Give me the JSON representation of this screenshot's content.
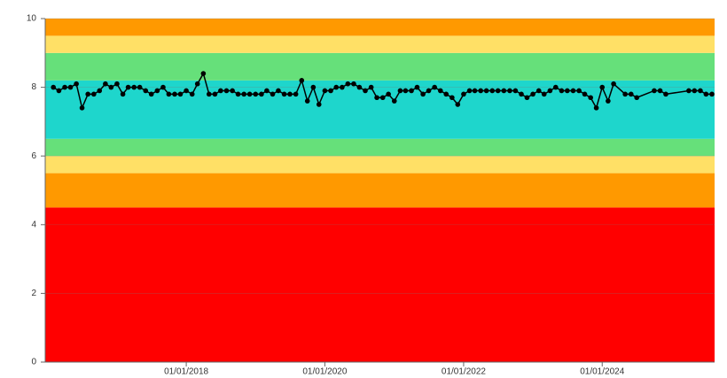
{
  "chart_data": {
    "type": "line",
    "xlim": [
      "2015-12-20",
      "2025-08-15"
    ],
    "ylim": [
      0,
      10
    ],
    "yticks": [
      0,
      2,
      4,
      6,
      8,
      10
    ],
    "xticks": [
      {
        "value": "2018-01-01",
        "label": "01/01/2018"
      },
      {
        "value": "2020-01-01",
        "label": "01/01/2020"
      },
      {
        "value": "2022-01-01",
        "label": "01/01/2022"
      },
      {
        "value": "2024-01-01",
        "label": "01/01/2024"
      }
    ],
    "grid": true,
    "bands": [
      {
        "from": 0,
        "to": 4.5,
        "color": "#ff0000"
      },
      {
        "from": 4.5,
        "to": 5.5,
        "color": "#ff9900"
      },
      {
        "from": 5.5,
        "to": 6,
        "color": "#ffe066"
      },
      {
        "from": 6,
        "to": 6.5,
        "color": "#66e07a"
      },
      {
        "from": 6.5,
        "to": 8.2,
        "color": "#1ed6cc"
      },
      {
        "from": 8.2,
        "to": 9,
        "color": "#66e07a"
      },
      {
        "from": 9,
        "to": 9.5,
        "color": "#ffe066"
      },
      {
        "from": 9.5,
        "to": 10,
        "color": "#ff9900"
      }
    ],
    "series": [
      {
        "color": "#000000",
        "x": [
          "2016-02-01",
          "2016-03-01",
          "2016-04-01",
          "2016-05-01",
          "2016-06-01",
          "2016-07-01",
          "2016-08-01",
          "2016-09-01",
          "2016-10-01",
          "2016-11-01",
          "2016-12-01",
          "2017-01-01",
          "2017-02-01",
          "2017-03-01",
          "2017-04-01",
          "2017-05-01",
          "2017-06-01",
          "2017-07-01",
          "2017-08-01",
          "2017-09-01",
          "2017-10-01",
          "2017-11-01",
          "2017-12-01",
          "2018-01-01",
          "2018-02-01",
          "2018-03-01",
          "2018-04-01",
          "2018-05-01",
          "2018-06-01",
          "2018-07-01",
          "2018-08-01",
          "2018-09-01",
          "2018-10-01",
          "2018-11-01",
          "2018-12-01",
          "2019-01-01",
          "2019-02-01",
          "2019-03-01",
          "2019-04-01",
          "2019-05-01",
          "2019-06-01",
          "2019-07-01",
          "2019-08-01",
          "2019-09-01",
          "2019-10-01",
          "2019-11-01",
          "2019-12-01",
          "2020-01-01",
          "2020-02-01",
          "2020-03-01",
          "2020-04-01",
          "2020-05-01",
          "2020-06-01",
          "2020-07-01",
          "2020-08-01",
          "2020-09-01",
          "2020-10-01",
          "2020-11-01",
          "2020-12-01",
          "2021-01-01",
          "2021-02-01",
          "2021-03-01",
          "2021-04-01",
          "2021-05-01",
          "2021-06-01",
          "2021-07-01",
          "2021-08-01",
          "2021-09-01",
          "2021-10-01",
          "2021-11-01",
          "2021-12-01",
          "2022-01-01",
          "2022-02-01",
          "2022-03-01",
          "2022-04-01",
          "2022-05-01",
          "2022-06-01",
          "2022-07-01",
          "2022-08-01",
          "2022-09-01",
          "2022-10-01",
          "2022-11-01",
          "2022-12-01",
          "2023-01-01",
          "2023-02-01",
          "2023-03-01",
          "2023-04-01",
          "2023-05-01",
          "2023-06-01",
          "2023-07-01",
          "2023-08-01",
          "2023-09-01",
          "2023-10-01",
          "2023-11-01",
          "2023-12-01",
          "2024-01-01",
          "2024-02-01",
          "2024-03-01",
          "2024-05-01",
          "2024-06-01",
          "2024-07-01",
          "2024-10-01",
          "2024-11-01",
          "2024-12-01",
          "2025-04-01",
          "2025-05-01",
          "2025-06-01",
          "2025-07-01",
          "2025-08-01"
        ],
        "values": [
          8.0,
          7.9,
          8.0,
          8.0,
          8.1,
          7.4,
          7.8,
          7.8,
          7.9,
          8.1,
          8.0,
          8.1,
          7.8,
          8.0,
          8.0,
          8.0,
          7.9,
          7.8,
          7.9,
          8.0,
          7.8,
          7.8,
          7.8,
          7.9,
          7.8,
          8.1,
          8.4,
          7.8,
          7.8,
          7.9,
          7.9,
          7.9,
          7.8,
          7.8,
          7.8,
          7.8,
          7.8,
          7.9,
          7.8,
          7.9,
          7.8,
          7.8,
          7.8,
          8.2,
          7.6,
          8.0,
          7.5,
          7.9,
          7.9,
          8.0,
          8.0,
          8.1,
          8.1,
          8.0,
          7.9,
          8.0,
          7.7,
          7.7,
          7.8,
          7.6,
          7.9,
          7.9,
          7.9,
          8.0,
          7.8,
          7.9,
          8.0,
          7.9,
          7.8,
          7.7,
          7.5,
          7.8,
          7.9,
          7.9,
          7.9,
          7.9,
          7.9,
          7.9,
          7.9,
          7.9,
          7.9,
          7.8,
          7.7,
          7.8,
          7.9,
          7.8,
          7.9,
          8.0,
          7.9,
          7.9,
          7.9,
          7.9,
          7.8,
          7.7,
          7.4,
          8.0,
          7.6,
          8.1,
          7.8,
          7.8,
          7.7,
          7.9,
          7.9,
          7.8,
          7.9,
          7.9,
          7.9,
          7.8,
          7.8
        ]
      }
    ]
  }
}
